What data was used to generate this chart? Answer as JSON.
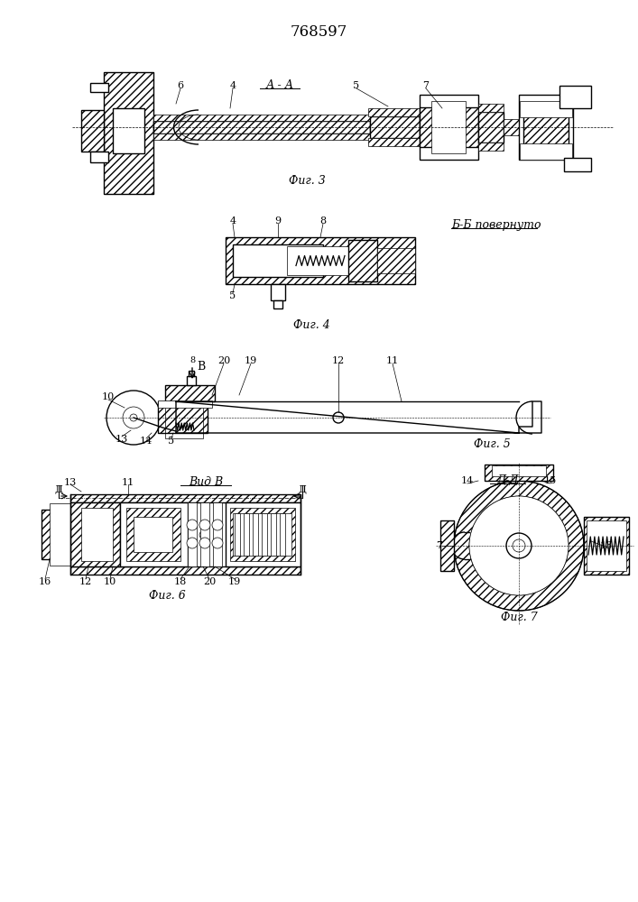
{
  "title": "768597",
  "background_color": "#ffffff",
  "line_color": "#000000",
  "fig3_label": "Фиг. 3",
  "fig4_label": "Фиг. 4",
  "fig5_label": "Фиг. 5",
  "fig6_label": "Фиг. 6",
  "fig7_label": "Фиг. 7",
  "section_aa": "А - А",
  "section_bb": "Б-Б повернуто",
  "section_vv": "Вид В",
  "fig_width": 7.07,
  "fig_height": 10.0
}
